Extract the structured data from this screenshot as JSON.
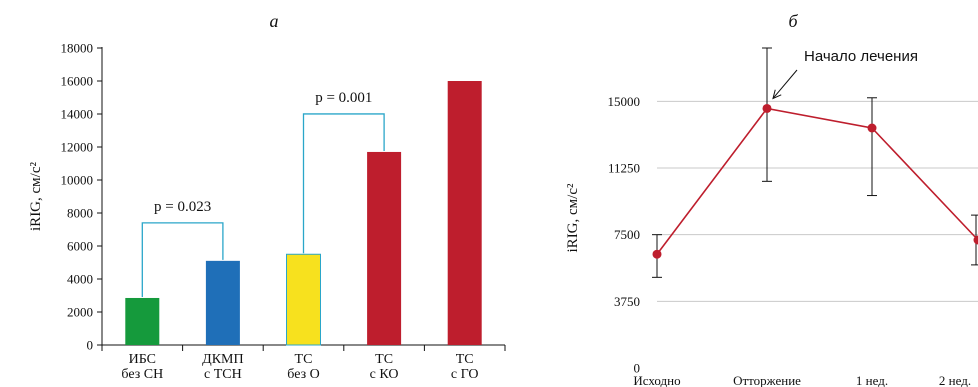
{
  "chart_data": [
    {
      "type": "bar",
      "panel_label": "а",
      "ylabel": "iRIG, см/с²",
      "ylim": [
        0,
        18000
      ],
      "yticks": [
        0,
        2000,
        4000,
        6000,
        8000,
        10000,
        12000,
        14000,
        16000,
        18000
      ],
      "categories": [
        {
          "line1": "ИБС",
          "line2": "без СН"
        },
        {
          "line1": "ДКМП",
          "line2": "с ТСН"
        },
        {
          "line1": "ТС",
          "line2": "без О"
        },
        {
          "line1": "ТС",
          "line2": "с КО"
        },
        {
          "line1": "ТС",
          "line2": "с ГО"
        }
      ],
      "values": [
        2850,
        5100,
        5500,
        11700,
        16000
      ],
      "colors": [
        "#159a3c",
        "#1f6fb8",
        "#f7e11e",
        "#be1e2d",
        "#be1e2d"
      ],
      "annotations": [
        {
          "text": "p = 0.023",
          "from": 0,
          "to": 1
        },
        {
          "text": "p = 0.001",
          "from": 2,
          "to": 3
        }
      ],
      "bracket_color": "#2aa6c9"
    },
    {
      "type": "line",
      "panel_label": "б",
      "ylabel": "iRIG, см/с²",
      "ylim": [
        0,
        18000
      ],
      "yticks": [
        0,
        3750,
        7500,
        11250,
        15000
      ],
      "categories": [
        "Исходно",
        "Отторжение",
        "1 нед.",
        "2 нед."
      ],
      "values": [
        6400,
        14600,
        13500,
        7200
      ],
      "error_low": [
        5100,
        10500,
        9700,
        5800
      ],
      "error_high": [
        7500,
        18000,
        15200,
        8600
      ],
      "line_color": "#be1e2d",
      "annotation": {
        "text": "Начало лечения",
        "point_index": 1
      }
    }
  ]
}
